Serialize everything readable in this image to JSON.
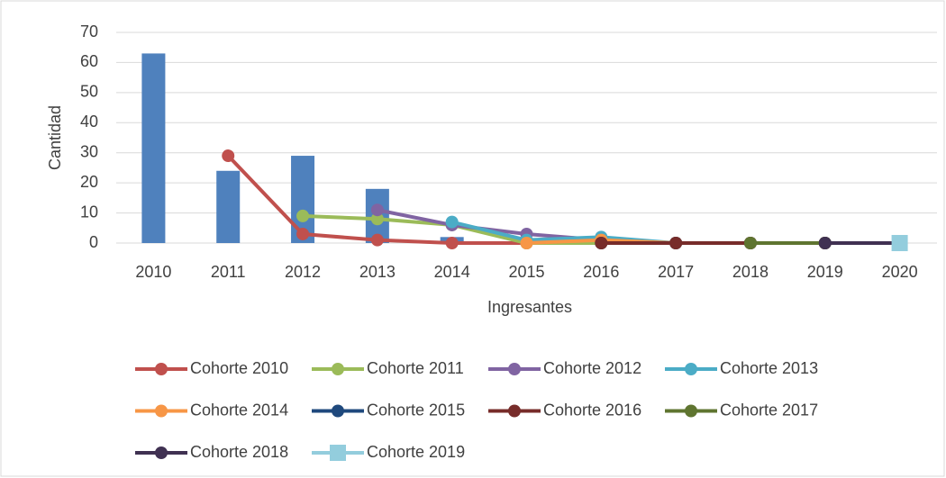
{
  "chart_data": {
    "type": "bar_line",
    "x_label": "Ingresantes",
    "y_label": "Cantidad",
    "categories": [
      "2010",
      "2011",
      "2012",
      "2013",
      "2014",
      "2015",
      "2016",
      "2017",
      "2018",
      "2019",
      "2020"
    ],
    "bars": {
      "color": "#4f81bd",
      "values": [
        63,
        24,
        29,
        18,
        2,
        0,
        0,
        0,
        0,
        0,
        0
      ]
    },
    "series": [
      {
        "name": "Cohorte 2010",
        "color": "#c0504d",
        "values": [
          null,
          29,
          3,
          1,
          0,
          0,
          0,
          0,
          0,
          0,
          0
        ]
      },
      {
        "name": "Cohorte 2011",
        "color": "#9bbb59",
        "values": [
          null,
          null,
          9,
          8,
          6,
          0,
          0,
          0,
          0,
          0,
          0
        ]
      },
      {
        "name": "Cohorte 2012",
        "color": "#8064a2",
        "values": [
          null,
          null,
          null,
          11,
          6,
          3,
          1,
          0,
          0,
          0,
          0
        ]
      },
      {
        "name": "Cohorte 2013",
        "color": "#4bacc6",
        "values": [
          null,
          null,
          null,
          null,
          7,
          1,
          2,
          0,
          0,
          0,
          0
        ]
      },
      {
        "name": "Cohorte 2014",
        "color": "#f79646",
        "values": [
          null,
          null,
          null,
          null,
          null,
          0,
          1,
          0,
          0,
          0,
          0
        ]
      },
      {
        "name": "Cohorte 2015",
        "color": "#1f497d",
        "values": [
          null,
          null,
          null,
          null,
          null,
          null,
          0,
          0,
          0,
          0,
          0
        ]
      },
      {
        "name": "Cohorte 2016",
        "color": "#772c2a",
        "values": [
          null,
          null,
          null,
          null,
          null,
          null,
          0,
          0,
          0,
          0,
          0
        ]
      },
      {
        "name": "Cohorte 2017",
        "color": "#5f7530",
        "values": [
          null,
          null,
          null,
          null,
          null,
          null,
          null,
          null,
          0,
          0,
          0
        ]
      },
      {
        "name": "Cohorte 2018",
        "color": "#403152",
        "values": [
          null,
          null,
          null,
          null,
          null,
          null,
          null,
          null,
          null,
          0,
          0
        ]
      },
      {
        "name": "Cohorte 2019",
        "color": "#93cddd",
        "marker": "square",
        "values": [
          null,
          null,
          null,
          null,
          null,
          null,
          null,
          null,
          null,
          null,
          0
        ]
      }
    ],
    "ylim": [
      0,
      70
    ],
    "yticks": [
      0,
      10,
      20,
      30,
      40,
      50,
      60,
      70
    ],
    "grid": true
  }
}
